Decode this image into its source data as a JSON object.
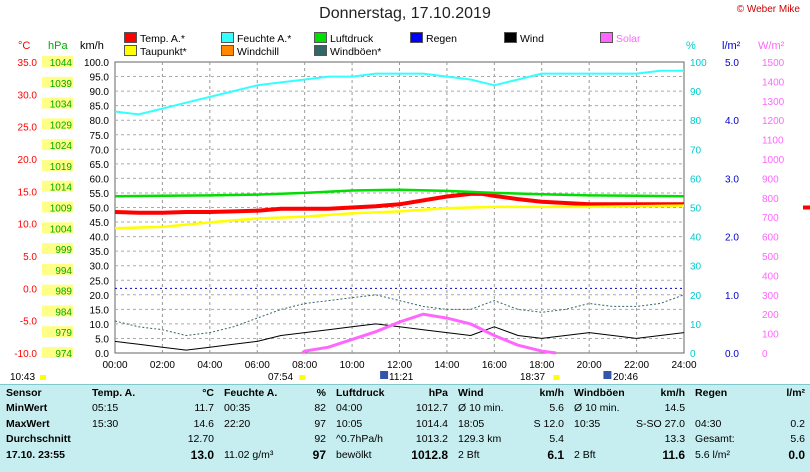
{
  "title": "Donnerstag, 17.10.2019",
  "copyright": "© Weber Mike",
  "legend": [
    {
      "label": "Temp. A.*",
      "color": "#ff0000"
    },
    {
      "label": "Feuchte A.*",
      "color": "#33ffff"
    },
    {
      "label": "Luftdruck",
      "color": "#00dd00"
    },
    {
      "label": "Regen",
      "color": "#0000ff"
    },
    {
      "label": "Wind",
      "color": "#000000"
    },
    {
      "label": "Solar",
      "color": "#ff66ff"
    },
    {
      "label": "Taupunkt*",
      "color": "#ffff00"
    },
    {
      "label": "Windchill",
      "color": "#ff8800"
    },
    {
      "label": "Windböen*",
      "color": "#336666"
    }
  ],
  "axis_headers": {
    "celsius": "°C",
    "hpa": "hPa",
    "kmh": "km/h",
    "percent": "%",
    "rain": "l/m²",
    "solar": "W/m²"
  },
  "sun": {
    "rise_time": "07:54",
    "set_time": "18:37",
    "moonrise": "11:21",
    "moonset": "20:46",
    "first_time": "10:43"
  },
  "chart_data": {
    "type": "line",
    "x_ticks": [
      "00:00",
      "02:00",
      "04:00",
      "06:00",
      "08:00",
      "10:00",
      "12:00",
      "14:00",
      "16:00",
      "18:00",
      "20:00",
      "22:00",
      "24:00"
    ],
    "x_range": [
      0,
      24
    ],
    "axes": {
      "celsius": {
        "range": [
          -10,
          35
        ],
        "ticks": [
          "35.0",
          "30.0",
          "25.0",
          "20.0",
          "15.0",
          "10.0",
          "5.0",
          "0.0",
          "-5.0",
          "-10.0"
        ]
      },
      "hpa": {
        "range": [
          974,
          1046
        ],
        "ticks": [
          "1044",
          "1039",
          "1034",
          "1029",
          "1024",
          "1019",
          "1014",
          "1009",
          "1004",
          "999",
          "994",
          "989",
          "984",
          "979",
          "974"
        ]
      },
      "kmh": {
        "range": [
          0,
          100
        ],
        "ticks": [
          "100.0",
          "95.0",
          "90.0",
          "85.0",
          "80.0",
          "75.0",
          "70.0",
          "65.0",
          "60.0",
          "55.0",
          "50.0",
          "45.0",
          "40.0",
          "35.0",
          "30.0",
          "25.0",
          "20.0",
          "15.0",
          "10.0",
          "5.0",
          "0.0"
        ]
      },
      "percent": {
        "range": [
          0,
          100
        ],
        "ticks": [
          "100",
          "90",
          "80",
          "70",
          "60",
          "50",
          "40",
          "30",
          "20",
          "10",
          "0"
        ]
      },
      "rain": {
        "range": [
          0,
          5
        ],
        "ticks": [
          "5.0",
          "4.0",
          "3.0",
          "2.0",
          "1.0",
          "0.0"
        ]
      },
      "solar": {
        "range": [
          0,
          1500
        ],
        "ticks": [
          "1500",
          "1400",
          "1300",
          "1200",
          "1100",
          "1000",
          "900",
          "800",
          "700",
          "600",
          "500",
          "400",
          "300",
          "200",
          "100",
          "0"
        ]
      }
    },
    "series": [
      {
        "name": "Temp. A.*",
        "axis": "celsius",
        "color": "#ff0000",
        "x": [
          0,
          1,
          2,
          3,
          4,
          5,
          6,
          7,
          8,
          9,
          10,
          11,
          12,
          13,
          14,
          15,
          15.5,
          16,
          17,
          18,
          19,
          20,
          21,
          22,
          23,
          24
        ],
        "y": [
          11.8,
          11.7,
          11.7,
          11.8,
          11.8,
          11.9,
          12.0,
          12.3,
          12.3,
          12.3,
          12.5,
          12.7,
          13.0,
          13.6,
          14.2,
          14.6,
          14.6,
          14.3,
          13.8,
          13.4,
          13.2,
          13.0,
          13.0,
          13.0,
          13.0,
          13.0
        ]
      },
      {
        "name": "Feuchte A.*",
        "axis": "percent",
        "color": "#33ffff",
        "x": [
          0,
          1,
          2,
          3,
          4,
          5,
          6,
          7,
          8,
          9,
          10,
          11,
          12,
          13,
          14,
          15,
          16,
          17,
          18,
          19,
          20,
          21,
          22,
          23,
          24
        ],
        "y": [
          83,
          82,
          84,
          86,
          88,
          90,
          92,
          93,
          94,
          95,
          95,
          96,
          96,
          96,
          95,
          94,
          92,
          94,
          96,
          96,
          96,
          96,
          96,
          97,
          97
        ]
      },
      {
        "name": "Luftdruck",
        "axis": "hpa",
        "color": "#00dd00",
        "x": [
          0,
          2,
          4,
          6,
          8,
          10,
          12,
          14,
          16,
          18,
          20,
          22,
          24
        ],
        "y": [
          1012.8,
          1012.9,
          1013.0,
          1013.2,
          1013.6,
          1014.2,
          1014.4,
          1014.1,
          1013.6,
          1013.3,
          1013.0,
          1012.9,
          1012.8
        ]
      },
      {
        "name": "Taupunkt*",
        "axis": "celsius",
        "color": "#ffff00",
        "x": [
          0,
          2,
          4,
          6,
          8,
          10,
          12,
          14,
          16,
          18,
          20,
          22,
          24
        ],
        "y": [
          9.3,
          9.5,
          10.2,
          10.8,
          11.1,
          11.6,
          11.9,
          12.4,
          12.6,
          12.6,
          12.6,
          12.7,
          12.8
        ]
      },
      {
        "name": "Wind",
        "axis": "kmh",
        "color": "#000000",
        "x": [
          0,
          1,
          2,
          3,
          4,
          5,
          6,
          7,
          8,
          9,
          10,
          11,
          12,
          13,
          14,
          15,
          16,
          17,
          18,
          19,
          20,
          21,
          22,
          23,
          24
        ],
        "y": [
          4,
          3,
          2,
          1,
          2,
          3,
          4,
          6,
          7,
          8,
          9,
          10,
          9,
          8,
          7,
          6,
          9,
          6,
          5,
          6,
          7,
          6,
          5,
          6,
          7
        ]
      },
      {
        "name": "Windböen*",
        "axis": "kmh",
        "color": "#336666",
        "x": [
          0,
          1,
          2,
          3,
          4,
          5,
          6,
          7,
          8,
          9,
          10,
          11,
          12,
          13,
          14,
          15,
          16,
          17,
          18,
          19,
          20,
          21,
          22,
          23,
          24
        ],
        "y": [
          11,
          9,
          8,
          6,
          7,
          9,
          12,
          15,
          17,
          18,
          19,
          20,
          18,
          16,
          15,
          15,
          18,
          15,
          14,
          15,
          17,
          16,
          16,
          17,
          20
        ]
      },
      {
        "name": "Solar",
        "axis": "solar",
        "color": "#ff66ff",
        "x": [
          7.9,
          8,
          9,
          10,
          11,
          12,
          13,
          14,
          15,
          16,
          17,
          18,
          18.6
        ],
        "y": [
          0,
          10,
          30,
          70,
          110,
          160,
          200,
          180,
          150,
          90,
          40,
          10,
          0
        ]
      }
    ]
  },
  "stats": {
    "headers": [
      "Sensor",
      "Temp. A.",
      "°C",
      "Feuchte A.",
      "%",
      "Luftdruck",
      "hPa",
      "Wind",
      "km/h",
      "Windböen",
      "km/h",
      "Regen",
      "l/m²"
    ],
    "rows": [
      {
        "label": "MinWert",
        "cells": [
          "05:15",
          "11.7",
          "00:35",
          "82",
          "04:00",
          "1012.7",
          "Ø 10 min.",
          "5.6",
          "Ø 10 min.",
          "14.5",
          "",
          ""
        ]
      },
      {
        "label": "MaxWert",
        "cells": [
          "15:30",
          "14.6",
          "22:20",
          "97",
          "10:05",
          "1014.4",
          "18:05",
          "S 12.0",
          "10:35",
          "S-SO 27.0",
          "04:30",
          "0.2"
        ]
      },
      {
        "label": "Durchschnitt",
        "cells": [
          "",
          "12.70",
          "",
          "92",
          "^0.7hPa/h",
          "1013.2",
          "129.3 km",
          "5.4",
          "",
          "13.3",
          "Gesamt:",
          "5.6"
        ]
      },
      {
        "label": "17.10. 23:55",
        "cells": [
          "",
          "13.0",
          "11.02 g/m³",
          "97",
          "bewölkt",
          "1012.8",
          "2 Bft",
          "6.1",
          "2 Bft",
          "11.6",
          "5.6 l/m²",
          "0.0"
        ]
      }
    ]
  }
}
